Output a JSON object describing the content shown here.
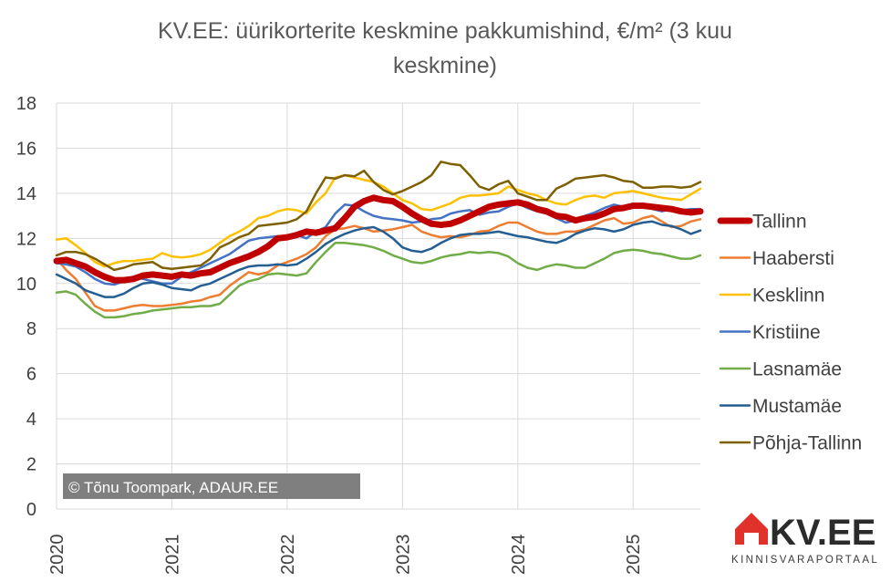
{
  "chart_data": {
    "type": "line",
    "title_line1": "KV.EE: üürikorterite keskmine pakkumishind, €/m² (3 kuu",
    "title_line2": "keskmine)",
    "ylim": [
      0,
      18
    ],
    "yticks": [
      "0",
      "2",
      "4",
      "6",
      "8",
      "10",
      "12",
      "14",
      "16",
      "18"
    ],
    "xlim": [
      "2020-01",
      "2025-06"
    ],
    "xticks": [
      "2020",
      "2021",
      "2022",
      "2023",
      "2024",
      "2025"
    ],
    "grid": true,
    "legend_position": "right",
    "credit": "© Tõnu Toompark, ADAUR.EE",
    "logo": {
      "text": "KV.EE",
      "subtitle": "KINNISVARAPORTAAL",
      "color": "#e0312a"
    },
    "series": [
      {
        "name": "Tallinn",
        "color": "#c00000",
        "width": 7,
        "values": [
          11.0,
          11.05,
          10.9,
          10.75,
          10.5,
          10.3,
          10.15,
          10.15,
          10.2,
          10.35,
          10.4,
          10.35,
          10.3,
          10.4,
          10.35,
          10.45,
          10.5,
          10.7,
          10.9,
          11.05,
          11.2,
          11.4,
          11.65,
          12.0,
          12.05,
          12.15,
          12.3,
          12.25,
          12.35,
          12.45,
          12.9,
          13.4,
          13.65,
          13.8,
          13.7,
          13.65,
          13.4,
          13.1,
          12.85,
          12.65,
          12.6,
          12.65,
          12.8,
          13.0,
          13.2,
          13.4,
          13.5,
          13.55,
          13.6,
          13.5,
          13.3,
          13.2,
          13.0,
          12.95,
          12.8,
          12.9,
          12.95,
          13.1,
          13.3,
          13.35,
          13.45,
          13.45,
          13.4,
          13.35,
          13.3,
          13.2,
          13.15,
          13.2
        ]
      },
      {
        "name": "Haabersti",
        "color": "#ed7d31",
        "width": 2.5,
        "values": [
          11.1,
          10.6,
          10.2,
          9.6,
          9.0,
          8.8,
          8.8,
          8.9,
          9.0,
          9.05,
          9.0,
          9.0,
          9.05,
          9.1,
          9.2,
          9.25,
          9.4,
          9.5,
          9.9,
          10.2,
          10.5,
          10.4,
          10.5,
          10.8,
          10.95,
          11.1,
          11.3,
          11.6,
          12.1,
          12.4,
          12.45,
          12.55,
          12.45,
          12.3,
          12.35,
          12.4,
          12.5,
          12.6,
          12.3,
          12.15,
          12.05,
          12.1,
          12.05,
          12.15,
          12.3,
          12.35,
          12.55,
          12.7,
          12.7,
          12.5,
          12.3,
          12.2,
          12.2,
          12.3,
          12.3,
          12.4,
          12.6,
          12.8,
          12.9,
          12.65,
          12.7,
          12.9,
          13.0,
          12.75,
          12.5,
          12.55,
          12.75,
          12.85
        ]
      },
      {
        "name": "Kesklinn",
        "color": "#ffc000",
        "width": 2.5,
        "values": [
          11.95,
          12.0,
          11.7,
          11.35,
          10.95,
          10.75,
          10.9,
          11.0,
          11.0,
          11.05,
          11.1,
          11.35,
          11.2,
          11.15,
          11.2,
          11.3,
          11.5,
          11.8,
          12.1,
          12.3,
          12.55,
          12.9,
          13.0,
          13.2,
          13.3,
          13.25,
          13.1,
          13.6,
          14.0,
          14.7,
          14.8,
          14.7,
          14.6,
          14.5,
          14.3,
          14.0,
          13.7,
          13.55,
          13.3,
          13.25,
          13.4,
          13.55,
          13.8,
          13.9,
          13.9,
          13.95,
          14.0,
          14.3,
          14.15,
          14.0,
          13.9,
          13.7,
          13.55,
          13.5,
          13.7,
          13.85,
          13.9,
          13.8,
          14.0,
          14.05,
          14.1,
          14.0,
          13.9,
          13.8,
          13.75,
          13.7,
          13.95,
          14.2
        ]
      },
      {
        "name": "Kristiine",
        "color": "#4472c4",
        "width": 2.5,
        "values": [
          10.9,
          10.85,
          10.75,
          10.5,
          10.2,
          10.0,
          9.95,
          10.1,
          10.3,
          10.2,
          10.1,
          10.0,
          10.0,
          10.3,
          10.5,
          10.7,
          10.9,
          11.1,
          11.3,
          11.6,
          11.9,
          12.0,
          12.05,
          12.1,
          12.05,
          12.15,
          12.0,
          12.3,
          12.5,
          13.1,
          13.5,
          13.45,
          13.2,
          13.0,
          12.9,
          12.85,
          12.8,
          12.7,
          12.75,
          12.85,
          12.9,
          13.1,
          13.2,
          13.25,
          13.05,
          13.15,
          13.2,
          13.4,
          13.55,
          13.35,
          13.2,
          13.1,
          12.9,
          12.7,
          12.8,
          13.0,
          13.15,
          13.35,
          13.5,
          13.4,
          13.45,
          13.55,
          13.3,
          13.2,
          13.3,
          13.25,
          13.3,
          13.3
        ]
      },
      {
        "name": "Lasnamäe",
        "color": "#70ad47",
        "width": 2.5,
        "values": [
          9.6,
          9.65,
          9.5,
          9.1,
          8.75,
          8.5,
          8.5,
          8.55,
          8.65,
          8.7,
          8.8,
          8.85,
          8.9,
          8.95,
          8.95,
          9.0,
          9.0,
          9.1,
          9.5,
          9.9,
          10.1,
          10.2,
          10.4,
          10.45,
          10.4,
          10.35,
          10.45,
          10.95,
          11.4,
          11.8,
          11.8,
          11.75,
          11.7,
          11.6,
          11.45,
          11.25,
          11.1,
          10.95,
          10.9,
          11.0,
          11.15,
          11.25,
          11.3,
          11.4,
          11.35,
          11.4,
          11.35,
          11.2,
          10.9,
          10.7,
          10.6,
          10.75,
          10.85,
          10.8,
          10.7,
          10.7,
          10.9,
          11.1,
          11.35,
          11.45,
          11.5,
          11.45,
          11.35,
          11.3,
          11.2,
          11.1,
          11.1,
          11.25
        ]
      },
      {
        "name": "Mustamäe",
        "color": "#255e91",
        "width": 2.5,
        "values": [
          10.4,
          10.2,
          10.0,
          9.7,
          9.55,
          9.4,
          9.4,
          9.55,
          9.8,
          10.0,
          10.05,
          9.95,
          9.8,
          9.75,
          9.7,
          9.9,
          10.0,
          10.2,
          10.4,
          10.6,
          10.75,
          10.8,
          10.8,
          10.85,
          10.8,
          10.85,
          11.1,
          11.4,
          11.75,
          12.0,
          12.2,
          12.35,
          12.45,
          12.5,
          12.3,
          12.0,
          11.6,
          11.45,
          11.4,
          11.55,
          11.8,
          12.0,
          12.15,
          12.2,
          12.2,
          12.25,
          12.3,
          12.2,
          12.1,
          12.05,
          11.95,
          11.85,
          11.8,
          11.95,
          12.2,
          12.35,
          12.45,
          12.4,
          12.3,
          12.4,
          12.6,
          12.7,
          12.75,
          12.6,
          12.55,
          12.4,
          12.2,
          12.35
        ]
      },
      {
        "name": "Põhja-Tallinn",
        "color": "#7f6000",
        "width": 2.5,
        "values": [
          11.25,
          11.4,
          11.4,
          11.3,
          11.1,
          10.85,
          10.6,
          10.7,
          10.85,
          10.9,
          10.95,
          10.7,
          10.65,
          10.7,
          10.75,
          10.8,
          11.1,
          11.6,
          11.8,
          12.05,
          12.2,
          12.55,
          12.6,
          12.65,
          12.7,
          12.85,
          13.2,
          14.0,
          14.7,
          14.65,
          14.8,
          14.75,
          15.0,
          14.5,
          14.15,
          13.95,
          14.1,
          14.3,
          14.5,
          14.8,
          15.4,
          15.3,
          15.25,
          14.8,
          14.3,
          14.15,
          14.4,
          14.55,
          14.0,
          13.85,
          13.7,
          13.7,
          14.2,
          14.4,
          14.65,
          14.7,
          14.75,
          14.8,
          14.7,
          14.55,
          14.5,
          14.25,
          14.25,
          14.3,
          14.3,
          14.25,
          14.3,
          14.5
        ]
      }
    ]
  }
}
